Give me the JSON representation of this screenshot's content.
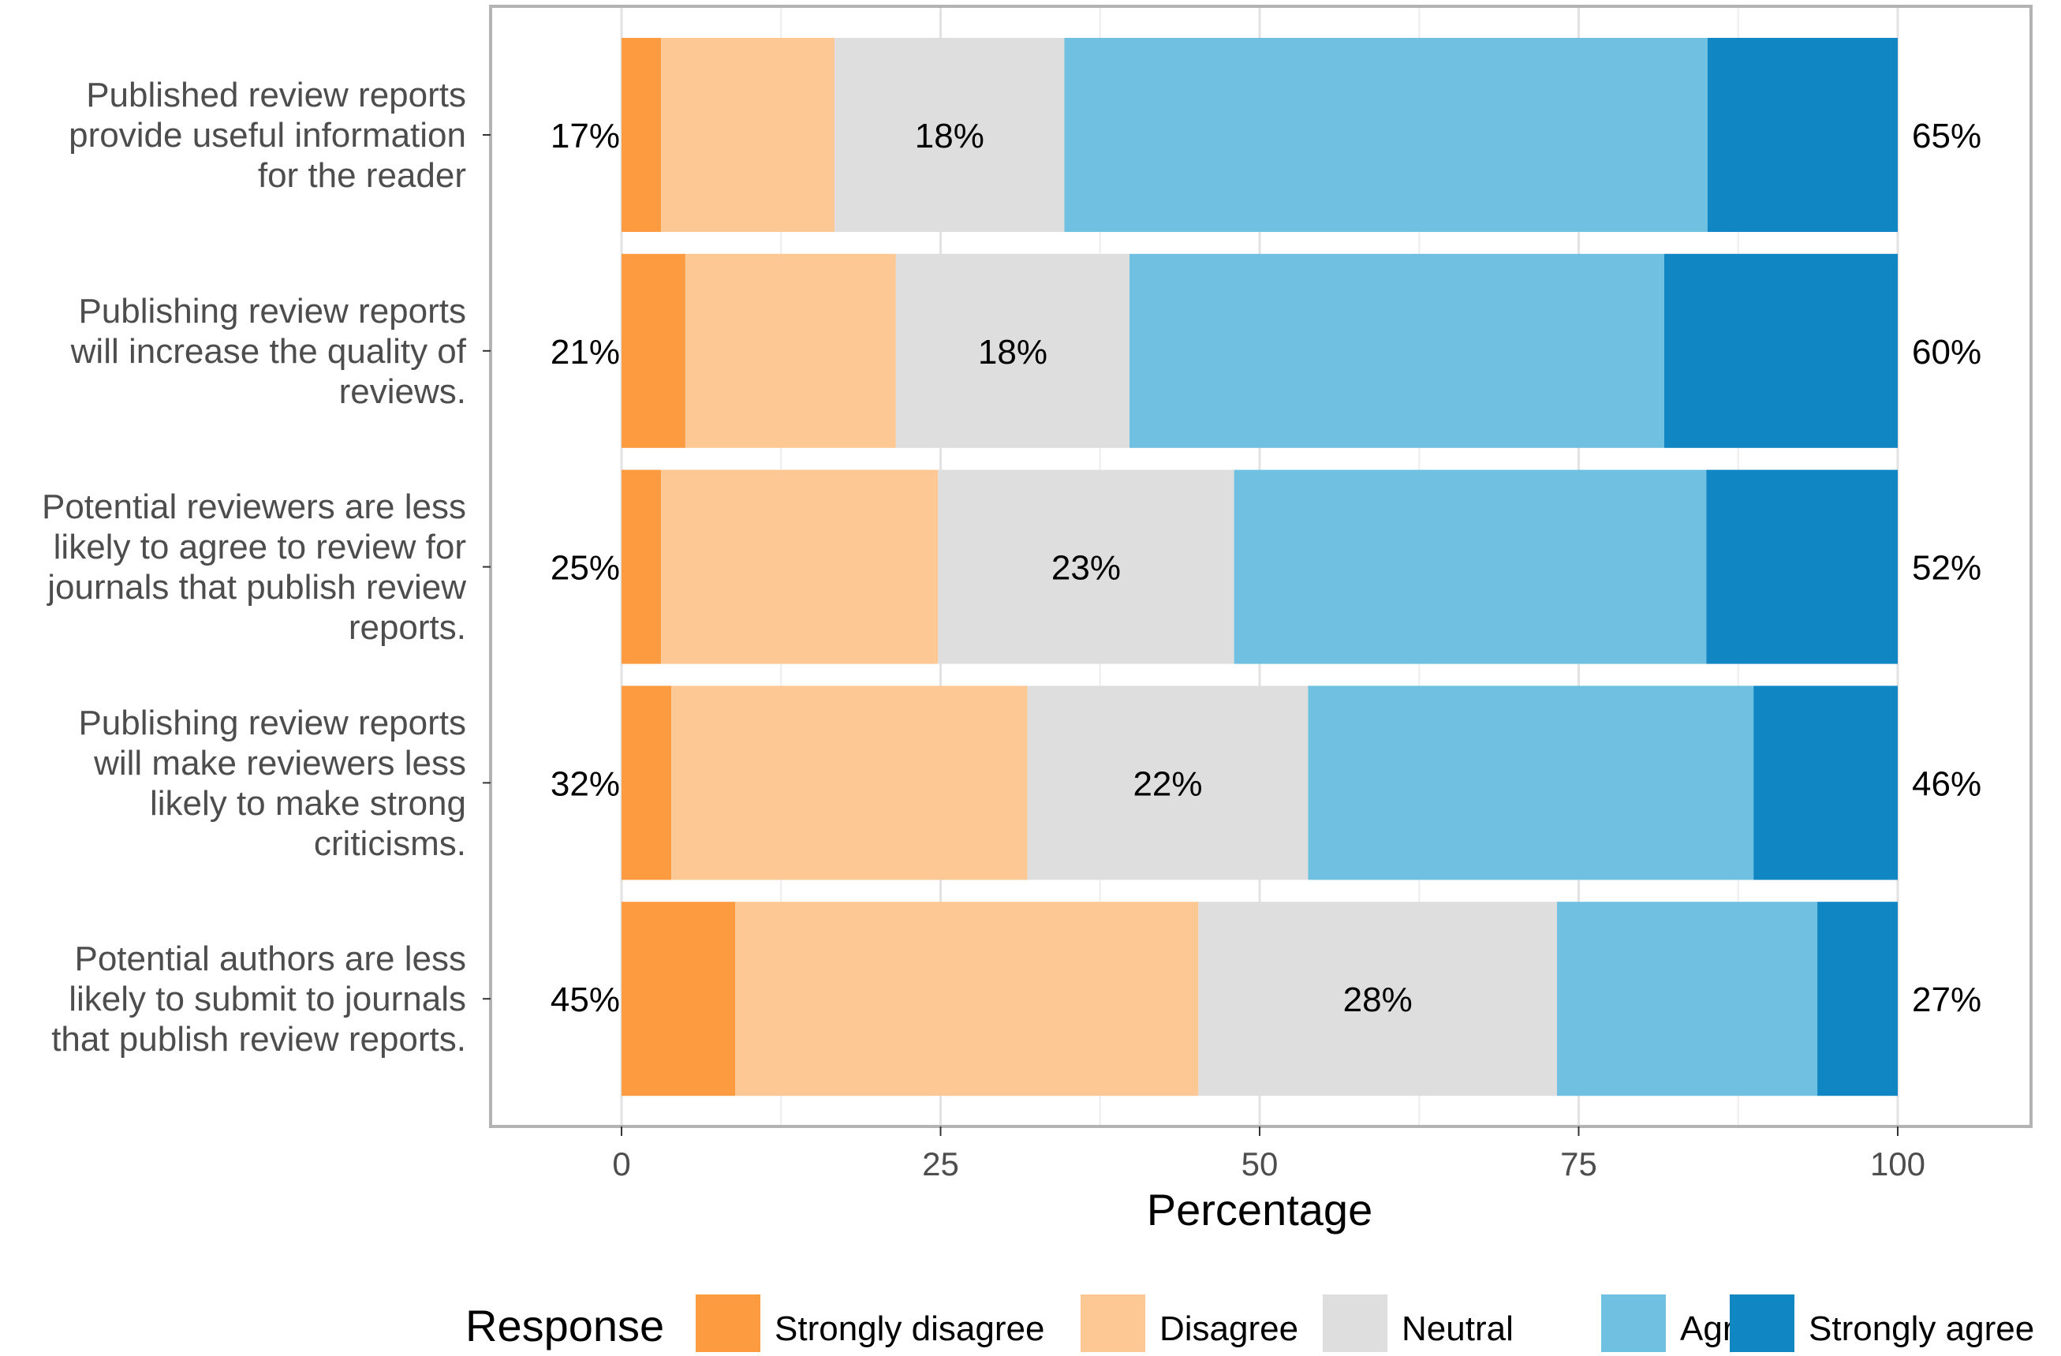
{
  "chart_data": {
    "type": "bar",
    "orientation": "horizontal",
    "stacked": true,
    "title": "",
    "xlabel": "Percentage",
    "ylabel": "",
    "xlim": [
      0,
      100
    ],
    "x_ticks": [
      0,
      25,
      50,
      75,
      100
    ],
    "x_tick_labels": [
      "0",
      "25",
      "50",
      "75",
      "100"
    ],
    "grid": true,
    "legend_title": "Response",
    "legend_position": "bottom",
    "categories": [
      [
        "Published review reports",
        "provide useful information",
        "for the reader"
      ],
      [
        "Publishing review reports",
        "will increase the quality of",
        "reviews."
      ],
      [
        "Potential reviewers are less",
        "likely to agree to review for",
        "journals that publish review",
        "reports."
      ],
      [
        "Publishing review reports",
        "will make reviewers less",
        "likely to make strong",
        "criticisms."
      ],
      [
        "Potential authors are less",
        "likely to submit to journals",
        "that publish review reports."
      ]
    ],
    "series": [
      {
        "name": "Strongly disagree",
        "color": "#FD9B40",
        "values": [
          3.1,
          5.0,
          3.1,
          3.9,
          8.9
        ]
      },
      {
        "name": "Disagree",
        "color": "#FDC893",
        "values": [
          13.6,
          16.5,
          21.7,
          27.9,
          36.3
        ]
      },
      {
        "name": "Neutral",
        "color": "#DEDEDE",
        "values": [
          18.0,
          18.3,
          23.2,
          22.0,
          28.1
        ]
      },
      {
        "name": "Agree",
        "color": "#6FC0E1",
        "values": [
          50.4,
          41.9,
          37.0,
          34.9,
          20.4
        ]
      },
      {
        "name": "Strongly agree",
        "color": "#1087C3",
        "values": [
          14.9,
          18.3,
          15.0,
          11.3,
          6.3
        ]
      }
    ],
    "labels_left": [
      "17%",
      "21%",
      "25%",
      "32%",
      "45%"
    ],
    "labels_center": [
      "18%",
      "18%",
      "23%",
      "22%",
      "28%"
    ],
    "labels_right": [
      "65%",
      "60%",
      "52%",
      "46%",
      "27%"
    ]
  }
}
